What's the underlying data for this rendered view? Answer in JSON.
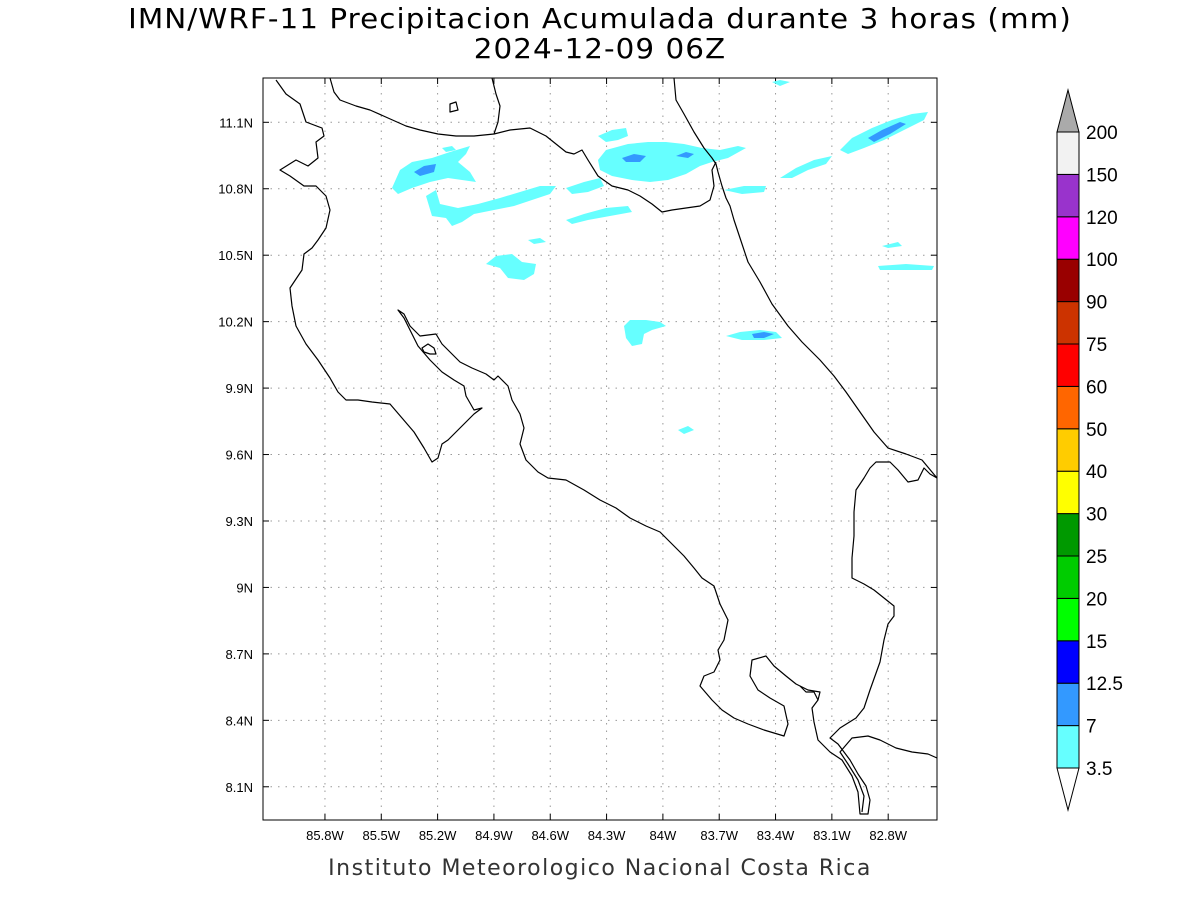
{
  "title_line1": "IMN/WRF-11 Precipitacion Acumulada durante 3 horas (mm)",
  "title_line2": "2024-12-09 06Z",
  "footer": "Instituto Meteorologico Nacional Costa Rica",
  "map": {
    "lon_labels": [
      "85.8W",
      "85.5W",
      "85.2W",
      "84.9W",
      "84.6W",
      "84.3W",
      "84W",
      "83.7W",
      "83.4W",
      "83.1W",
      "82.8W"
    ],
    "lat_labels": [
      "11.1N",
      "10.8N",
      "10.5N",
      "10.2N",
      "9.9N",
      "9.6N",
      "9.3N",
      "9N",
      "8.7N",
      "8.4N",
      "8.1N"
    ],
    "lon_values": [
      -85.8,
      -85.5,
      -85.2,
      -84.9,
      -84.6,
      -84.3,
      -84.0,
      -83.7,
      -83.4,
      -83.1,
      -82.8
    ],
    "lat_values": [
      11.1,
      10.8,
      10.5,
      10.2,
      9.9,
      9.6,
      9.3,
      9.0,
      8.7,
      8.4,
      8.1
    ],
    "lon_range": [
      -86.13,
      -82.54
    ],
    "lat_range": [
      7.95,
      11.3
    ],
    "grid": "dotted"
  },
  "colorbar": {
    "levels": [
      "3.5",
      "7",
      "12.5",
      "15",
      "20",
      "25",
      "30",
      "40",
      "50",
      "60",
      "75",
      "90",
      "100",
      "120",
      "150",
      "200"
    ],
    "colors": [
      "#66ffff",
      "#3399ff",
      "#0000ff",
      "#00ff00",
      "#00cc00",
      "#009900",
      "#ffff00",
      "#ffcc00",
      "#ff6600",
      "#ff0000",
      "#cc3300",
      "#990000",
      "#ff00ff",
      "#9933cc",
      "#f2f2f2",
      "#aaaaaa"
    ],
    "top_arrow_color": "#aaaaaa",
    "bottom_arrow_color": "#ffffff"
  },
  "legend_items": {
    "light_rain": "#66ffff",
    "moderate_rain": "#3399ff"
  }
}
